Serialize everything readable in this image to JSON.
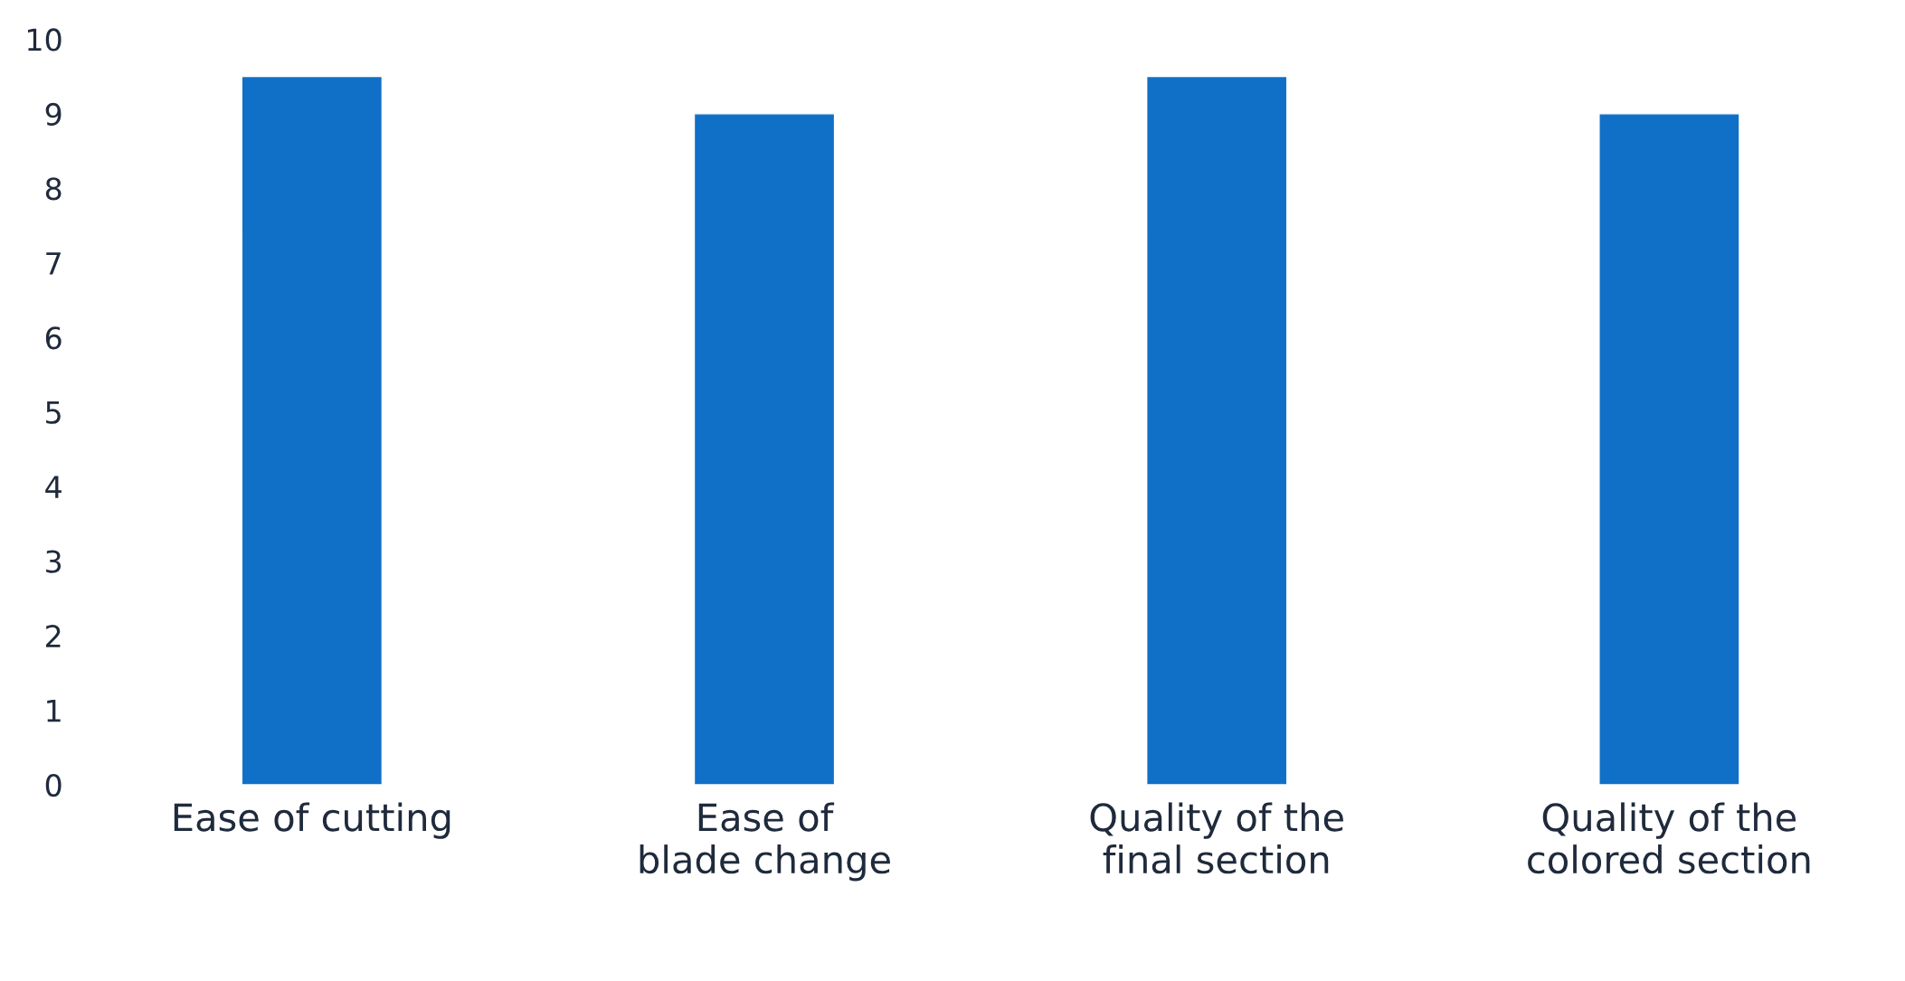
{
  "chart_data": {
    "type": "bar",
    "categories": [
      "Ease of cutting",
      "Ease of blade change",
      "Quality of the final section",
      "Quality of the colored section"
    ],
    "values": [
      9.5,
      9,
      9.5,
      9
    ],
    "color": "#1070c8",
    "ylim": [
      0,
      10
    ],
    "yticks": [
      0,
      1,
      2,
      3,
      4,
      5,
      6,
      7,
      8,
      9,
      10
    ],
    "grid": false,
    "legend": false
  }
}
